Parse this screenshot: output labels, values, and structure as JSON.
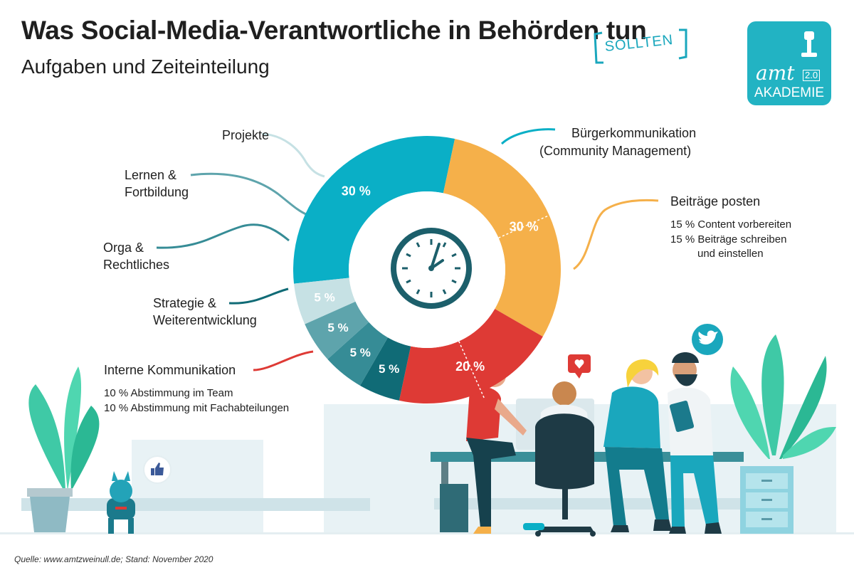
{
  "header": {
    "title": "Was Social-Media-Verantwortliche in Behörden tun",
    "subtitle": "Aufgaben und Zeiteinteilung",
    "stamp": "SOLLTEN"
  },
  "logo": {
    "word": "amt",
    "version": "2.0",
    "name": "AKADEMIE"
  },
  "labels": {
    "projekte": "Projekte",
    "lernen": "Lernen & Fortbildung",
    "orga": "Orga & Rechtliches",
    "strategie": "Strategie & Weiterentwicklung",
    "intern": "Interne Kommunikation",
    "intern_l1": "10 % Abstimmung im Team",
    "intern_l2": "10 % Abstimmung mit Fachabteilungen",
    "buerger_1": "Bürgerkommunikation",
    "buerger_2": "(Community Management)",
    "beitraege": "Beiträge posten",
    "beitr_l1": "15 % Content vorbereiten",
    "beitr_l2": "15 % Beiträge schreiben",
    "beitr_l3": "und einstellen"
  },
  "source": "Quelle:  www.amtzweinull.de; Stand: November 2020",
  "chart_data": {
    "type": "pie",
    "unit": "%",
    "slices": [
      {
        "label": "Bürgerkommunikation (Community Management)",
        "value": 30,
        "text": "30 %",
        "color": "#0aafc6"
      },
      {
        "label": "Beiträge posten",
        "value": 30,
        "text": "30 %",
        "color": "#f5b04a"
      },
      {
        "label": "Interne Kommunikation",
        "value": 20,
        "text": "20 %",
        "color": "#de3a35"
      },
      {
        "label": "Strategie & Weiterentwicklung",
        "value": 5,
        "text": "5 %",
        "color": "#106b76"
      },
      {
        "label": "Orga & Rechtliches",
        "value": 5,
        "text": "5 %",
        "color": "#368c96"
      },
      {
        "label": "Lernen & Fortbildung",
        "value": 5,
        "text": "5 %",
        "color": "#5ea4ac"
      },
      {
        "label": "Projekte",
        "value": 5,
        "text": "5 %",
        "color": "#c6e1e4"
      }
    ],
    "sub_splits": [
      {
        "slice": "Beiträge posten",
        "parts": [
          15,
          15
        ]
      },
      {
        "slice": "Interne Kommunikation",
        "parts": [
          10,
          10
        ]
      }
    ]
  },
  "colors": {
    "accent": "#1aa7bd",
    "text": "#1f1f1f"
  }
}
